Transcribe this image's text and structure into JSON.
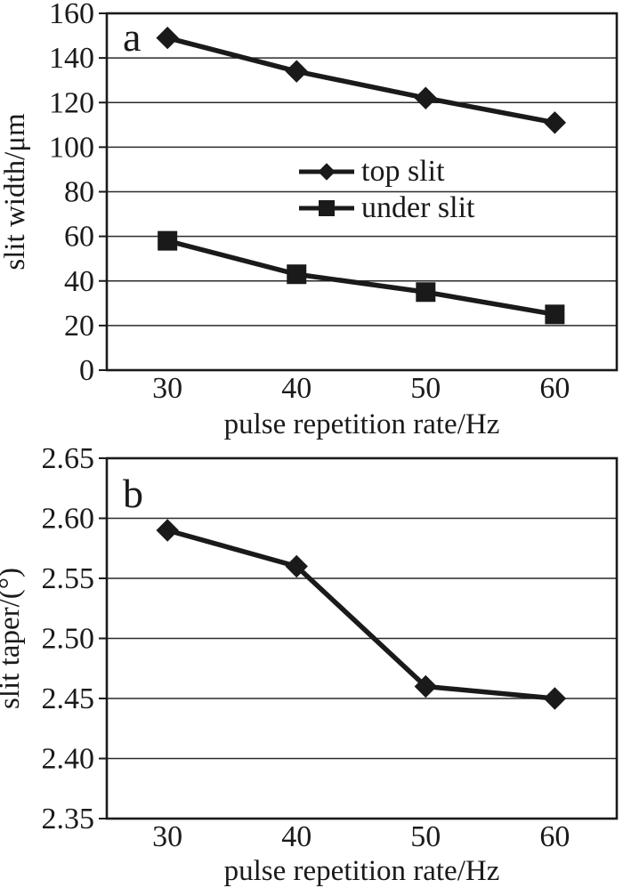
{
  "figure": {
    "background": "#ffffff",
    "ink_color": "#1a1a1a",
    "grid_color": "#2a2a2a"
  },
  "chart_data": [
    {
      "type": "line",
      "panel_label": "a",
      "xlabel": "pulse repetition rate/Hz",
      "ylabel": "slit width/μm",
      "x": [
        30,
        40,
        50,
        60
      ],
      "xticks": [
        30,
        40,
        50,
        60
      ],
      "xlim": [
        25.3,
        64.8
      ],
      "ylim": [
        0,
        160
      ],
      "yticks": [
        0,
        20,
        40,
        60,
        80,
        100,
        120,
        140,
        160
      ],
      "ytick_decimals": 0,
      "grid": true,
      "legend": {
        "visible": true,
        "position": "inside-center-left"
      },
      "series": [
        {
          "name": "top slit",
          "marker": "diamond",
          "values": [
            149,
            134,
            122,
            111
          ]
        },
        {
          "name": "under slit",
          "marker": "square",
          "values": [
            58,
            43,
            35,
            25
          ]
        }
      ]
    },
    {
      "type": "line",
      "panel_label": "b",
      "xlabel": "pulse repetition rate/Hz",
      "ylabel": "slit taper/(°)",
      "x": [
        30,
        40,
        50,
        60
      ],
      "xticks": [
        30,
        40,
        50,
        60
      ],
      "xlim": [
        25.3,
        64.8
      ],
      "ylim": [
        2.35,
        2.65
      ],
      "yticks": [
        2.35,
        2.4,
        2.45,
        2.5,
        2.55,
        2.6,
        2.65
      ],
      "ytick_decimals": 2,
      "grid": true,
      "legend": {
        "visible": false,
        "position": "none"
      },
      "series": [
        {
          "name": "slit taper",
          "marker": "diamond",
          "values": [
            2.59,
            2.56,
            2.46,
            2.45
          ]
        }
      ]
    }
  ]
}
